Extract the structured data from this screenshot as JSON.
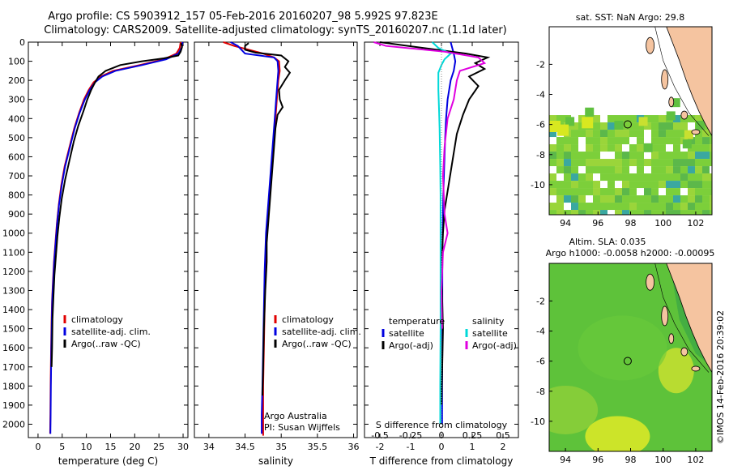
{
  "header": {
    "line1": "Argo profile: CS 5903912_157 05-Feb-2016 20160207_98 5.992S 97.823E",
    "line2": "Climatology: CARS2009. Satellite-adjusted climatology: synTS_20160207.nc (1.1d later)"
  },
  "footer": {
    "credit": "Argo Australia",
    "pi": "PI: Susan Wijffels",
    "stamp": "©IMOS 14-Feb-2016 20:39:02"
  },
  "colors": {
    "climatology": "#e00000",
    "satellite": "#0000e0",
    "argo": "#000000",
    "sat_salinity": "#00d8d8",
    "argo_salinity": "#e000e0",
    "land": "#f5c4a0",
    "sea_low": "#7ac840",
    "sea_high": "#e8f020"
  },
  "chart_data": [
    {
      "id": "temperature",
      "type": "line",
      "xlabel": "temperature (deg C)",
      "ylabel": "",
      "xlim": [
        -2,
        31
      ],
      "ylim": [
        2070,
        0
      ],
      "xticks": [
        0,
        5,
        10,
        15,
        20,
        25,
        30
      ],
      "yticks": [
        0,
        100,
        200,
        300,
        400,
        500,
        600,
        700,
        800,
        900,
        1000,
        1100,
        1200,
        1300,
        1400,
        1500,
        1600,
        1700,
        1800,
        1900,
        2000
      ],
      "legend": [
        "climatology",
        "satellite-adj. clim.",
        "Argo(..raw -QC)"
      ],
      "series": [
        {
          "name": "climatology",
          "color": "#e00000",
          "x": [
            29.5,
            29.3,
            28.6,
            26,
            21,
            15.5,
            13,
            11.5,
            10.5,
            9.5,
            8.5,
            7.5,
            6.5,
            5.5,
            4.8,
            4.3,
            3.9,
            3.6,
            3.3,
            3.1,
            2.9,
            2.8,
            2.7,
            2.6,
            2.55,
            2.5
          ],
          "y": [
            0,
            30,
            60,
            90,
            120,
            150,
            180,
            210,
            250,
            300,
            370,
            450,
            550,
            650,
            750,
            850,
            950,
            1050,
            1150,
            1250,
            1350,
            1450,
            1600,
            1800,
            1950,
            2050
          ]
        },
        {
          "name": "satellite-adj. clim.",
          "color": "#0000e0",
          "x": [
            29.9,
            29.7,
            29,
            26.5,
            21.5,
            16,
            13.3,
            11.8,
            10.7,
            9.7,
            8.6,
            7.6,
            6.6,
            5.6,
            4.9,
            4.35,
            3.95,
            3.65,
            3.35,
            3.15,
            2.95,
            2.85,
            2.75,
            2.65,
            2.6,
            2.55
          ],
          "y": [
            0,
            30,
            60,
            90,
            120,
            150,
            180,
            210,
            250,
            300,
            370,
            450,
            550,
            650,
            750,
            850,
            950,
            1050,
            1150,
            1250,
            1350,
            1450,
            1600,
            1800,
            1950,
            2050
          ]
        },
        {
          "name": "Argo(..raw -QC)",
          "color": "#000000",
          "x": [
            29.6,
            29.8,
            29.5,
            29.0,
            26,
            21.5,
            17,
            14,
            12.5,
            11.8,
            11,
            10.2,
            9.4,
            8.3,
            7.4,
            6.5,
            5.6,
            4.9,
            4.4,
            4.0,
            3.7,
            3.4,
            3.2,
            3.0,
            2.9,
            2.8
          ],
          "y": [
            5,
            25,
            50,
            70,
            85,
            100,
            120,
            150,
            180,
            210,
            250,
            300,
            360,
            440,
            520,
            620,
            720,
            820,
            920,
            1020,
            1120,
            1220,
            1330,
            1450,
            1600,
            1700
          ]
        }
      ]
    },
    {
      "id": "salinity",
      "type": "line",
      "xlabel": "salinity",
      "xlim": [
        33.8,
        36.05
      ],
      "ylim": [
        2070,
        0
      ],
      "xticks": [
        34,
        34.5,
        35,
        35.5,
        36
      ],
      "xticklabels": [
        "34",
        "34.5",
        "35",
        "35.5",
        "36"
      ],
      "legend": [
        "climatology",
        "satellite-adj. clim.",
        "Argo(..raw -QC)"
      ],
      "series": [
        {
          "name": "climatology",
          "color": "#e00000",
          "x": [
            34.2,
            34.35,
            34.55,
            34.75,
            34.9,
            34.97,
            34.98,
            34.96,
            34.94,
            34.92,
            34.9,
            34.88,
            34.86,
            34.84,
            34.82,
            34.8,
            34.78,
            34.77,
            34.76,
            34.75,
            34.75,
            34.75
          ],
          "y": [
            0,
            20,
            40,
            60,
            80,
            100,
            150,
            200,
            300,
            400,
            500,
            600,
            700,
            800,
            900,
            1000,
            1200,
            1400,
            1600,
            1800,
            1950,
            2060
          ]
        },
        {
          "name": "satellite-adj. clim.",
          "color": "#0000e0",
          "x": [
            34.3,
            34.4,
            34.45,
            34.5,
            34.9,
            34.95,
            34.96,
            34.95,
            34.93,
            34.91,
            34.89,
            34.87,
            34.85,
            34.83,
            34.81,
            34.79,
            34.77,
            34.76,
            34.75,
            34.74,
            34.73,
            34.73
          ],
          "y": [
            0,
            20,
            40,
            60,
            80,
            100,
            150,
            200,
            300,
            400,
            500,
            600,
            700,
            800,
            900,
            1000,
            1200,
            1400,
            1600,
            1800,
            1950,
            2050
          ]
        },
        {
          "name": "Argo(..raw -QC)",
          "color": "#000000",
          "x": [
            34.55,
            34.5,
            34.5,
            34.65,
            35.0,
            35.1,
            35.05,
            35.12,
            35.05,
            34.97,
            34.98,
            35.02,
            34.95,
            34.92,
            34.9,
            34.88,
            34.86,
            34.84,
            34.82,
            34.8,
            34.8,
            34.78,
            34.76,
            34.75,
            34.74
          ],
          "y": [
            5,
            20,
            40,
            55,
            70,
            100,
            130,
            160,
            200,
            250,
            300,
            340,
            380,
            450,
            550,
            650,
            750,
            850,
            950,
            1050,
            1150,
            1300,
            1500,
            1700,
            1850
          ]
        }
      ]
    },
    {
      "id": "difference",
      "type": "line",
      "xlabel": "T difference from climatology",
      "xlabel_top": "S difference from climatology",
      "xlim": [
        -2.5,
        2.5
      ],
      "ylim": [
        2070,
        0
      ],
      "xticks": [
        -2,
        -1,
        0,
        1,
        2
      ],
      "xticks_top": [
        "-0.5",
        "-0.25",
        "0",
        "0.25",
        "0.5"
      ],
      "legend_left_title": "temperature",
      "legend_right_title": "salinity",
      "legend": [
        "satellite",
        "Argo(-adj)",
        "satellite",
        "Argo(-adj)"
      ],
      "series": [
        {
          "name": "temperature satellite",
          "color": "#0000e0",
          "x": [
            0.3,
            0.35,
            0.4,
            0.45,
            0.4,
            0.3,
            0.2,
            0.15,
            0.12,
            0.1,
            0.08,
            0.06,
            0.05,
            0.04,
            0.03,
            0.03,
            0.03,
            0.02,
            0.02
          ],
          "y": [
            0,
            30,
            60,
            100,
            150,
            200,
            300,
            400,
            500,
            600,
            700,
            800,
            900,
            1000,
            1200,
            1400,
            1600,
            1800,
            2000
          ]
        },
        {
          "name": "temperature Argo(-adj)",
          "color": "#000000",
          "x": [
            -2.0,
            -0.6,
            0.8,
            1.5,
            1.1,
            1.4,
            0.9,
            1.2,
            0.9,
            0.7,
            0.5,
            0.4,
            0.3,
            0.2,
            0.1,
            0.05,
            0.0,
            0.05,
            0.0
          ],
          "y": [
            0,
            30,
            60,
            80,
            110,
            140,
            180,
            230,
            300,
            380,
            480,
            580,
            680,
            780,
            880,
            1000,
            1200,
            1500,
            1900
          ]
        },
        {
          "name": "salinity satellite",
          "color": "#00d8d8",
          "x": [
            -0.3,
            -0.1,
            0.3,
            0.1,
            0.0,
            -0.1,
            -0.1,
            -0.08,
            -0.06,
            -0.05,
            -0.04,
            -0.03,
            -0.03,
            -0.03,
            -0.03,
            -0.04,
            -0.04
          ],
          "y": [
            0,
            30,
            60,
            90,
            120,
            160,
            250,
            350,
            450,
            550,
            650,
            800,
            1000,
            1200,
            1500,
            1800,
            2000
          ]
        },
        {
          "name": "salinity Argo(-adj)",
          "color": "#e000e0",
          "x": [
            -2.2,
            -1.8,
            0.1,
            1.2,
            1.4,
            0.6,
            0.5,
            0.4,
            0.2,
            0.1,
            0.05,
            0.1,
            0.2,
            0.05,
            0.0,
            0.02
          ],
          "y": [
            0,
            20,
            50,
            80,
            110,
            150,
            200,
            300,
            400,
            550,
            700,
            900,
            1000,
            1100,
            1300,
            1500
          ]
        }
      ]
    },
    {
      "id": "sst-map",
      "type": "heatmap",
      "title": "sat. SST: NaN Argo: 29.8",
      "xlim": [
        93,
        103
      ],
      "ylim": [
        -12,
        0.5
      ],
      "xticks": [
        94,
        96,
        98,
        100,
        102
      ],
      "yticks": [
        -2,
        -4,
        -6,
        -8,
        -10
      ],
      "marker": {
        "x": 97.823,
        "y": -5.992
      }
    },
    {
      "id": "sla-map",
      "type": "heatmap",
      "title": "Altim. SLA: 0.035",
      "subtitle": "Argo h1000: -0.0058 h2000: -0.00095",
      "xlim": [
        93,
        103
      ],
      "ylim": [
        -12,
        0.5
      ],
      "xticks": [
        94,
        96,
        98,
        100,
        102
      ],
      "yticks": [
        -2,
        -4,
        -6,
        -8,
        -10
      ],
      "marker": {
        "x": 97.823,
        "y": -5.992
      }
    }
  ]
}
